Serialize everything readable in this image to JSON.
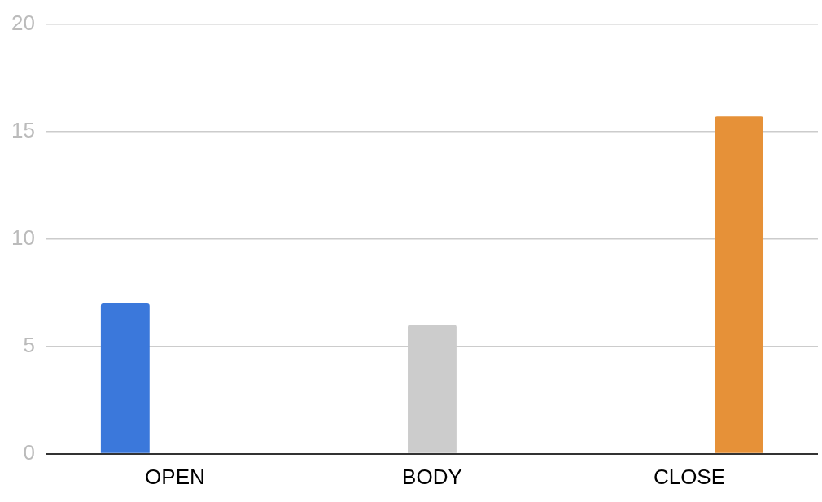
{
  "chart_data": {
    "type": "bar",
    "categories": [
      "OPEN",
      "BODY",
      "CLOSE"
    ],
    "series": [
      {
        "color": "#3b78db",
        "values": [
          7,
          null,
          null
        ]
      },
      {
        "color": "#cccccc",
        "values": [
          null,
          6,
          null
        ]
      },
      {
        "color": "#e69138",
        "values": [
          null,
          null,
          15.7
        ]
      }
    ],
    "ylim": [
      0,
      20
    ],
    "yticks": [
      0,
      5,
      10,
      15,
      20
    ],
    "grid": "y",
    "legend": false
  }
}
